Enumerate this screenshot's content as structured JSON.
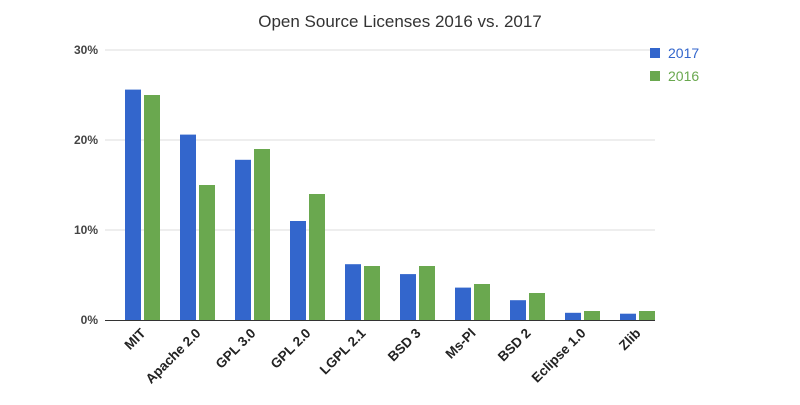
{
  "chart_data": {
    "type": "bar",
    "title": "Open Source Licenses 2016 vs. 2017",
    "xlabel": "",
    "ylabel": "",
    "categories": [
      "MIT",
      "Apache 2.0",
      "GPL 3.0",
      "GPL 2.0",
      "LGPL 2.1",
      "BSD 3",
      "Ms-Pl",
      "BSD 2",
      "Eclipse 1.0",
      "Zlib"
    ],
    "series": [
      {
        "name": "2017",
        "color": "#3366cc",
        "values": [
          25.6,
          20.6,
          17.8,
          11.0,
          6.2,
          5.1,
          3.6,
          2.2,
          0.8,
          0.7
        ]
      },
      {
        "name": "2016",
        "color": "#6aa84f",
        "values": [
          25.0,
          15.0,
          19.0,
          14.0,
          6.0,
          6.0,
          4.0,
          3.0,
          1.0,
          1.0
        ]
      }
    ],
    "ylim": [
      0,
      30
    ],
    "yticks": [
      0,
      10,
      20,
      30
    ],
    "ytick_labels": [
      "0%",
      "10%",
      "20%",
      "30%"
    ],
    "grid": true,
    "legend_position": "top-right",
    "legend_text_colors": [
      "#3366cc",
      "#6aa84f"
    ]
  }
}
